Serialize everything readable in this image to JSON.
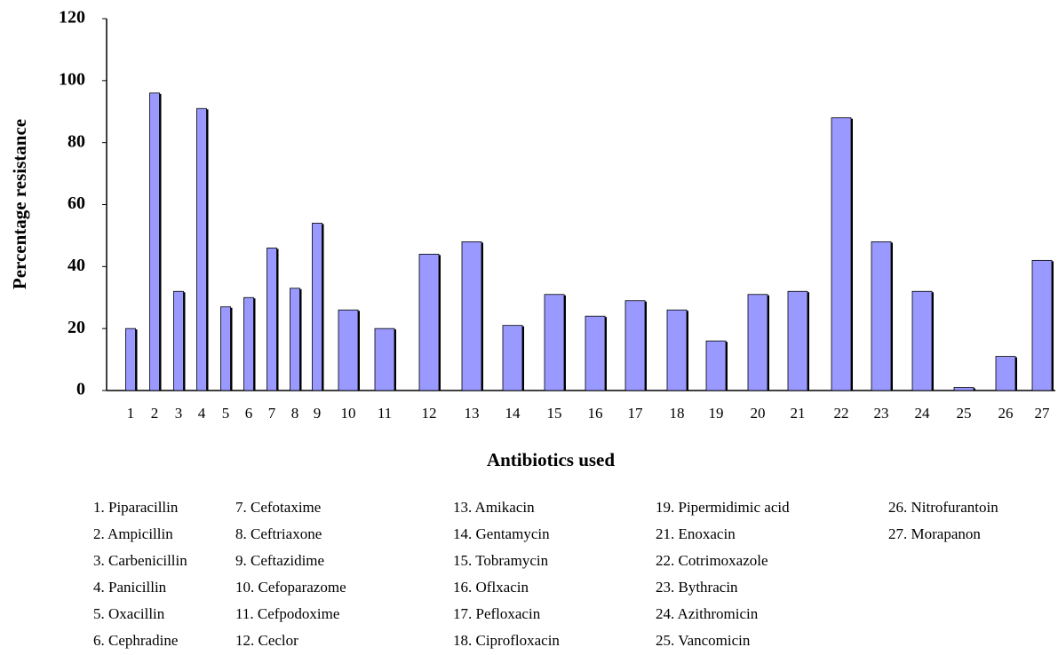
{
  "chart_data": {
    "type": "bar",
    "ylabel": "Percentage resistance",
    "xlabel": "Antibiotics used",
    "categories": [
      "1",
      "2",
      "3",
      "4",
      "5",
      "6",
      "7",
      "8",
      "9",
      "10",
      "11",
      "12",
      "13",
      "14",
      "15",
      "16",
      "17",
      "18",
      "19",
      "20",
      "21",
      "22",
      "23",
      "24",
      "25",
      "26",
      "27"
    ],
    "values": [
      20,
      96,
      32,
      91,
      27,
      30,
      46,
      33,
      54,
      26,
      20,
      44,
      48,
      21,
      31,
      24,
      29,
      26,
      16,
      31,
      32,
      88,
      48,
      32,
      1,
      11,
      42
    ],
    "color": "#9999ff",
    "ylim": [
      0,
      120
    ],
    "yticks": [
      0,
      20,
      40,
      60,
      80,
      100,
      120
    ],
    "grid": false,
    "notes": [
      [
        "1. Piparacillin",
        "2. Ampicillin",
        "3. Carbenicillin",
        "4. Panicillin",
        "5. Oxacillin",
        "6. Cephradine"
      ],
      [
        "7. Cefotaxime",
        "8. Ceftriaxone",
        "9. Ceftazidime",
        "10. Cefoparazome",
        "11. Cefpodoxime",
        "12. Ceclor"
      ],
      [
        "13. Amikacin",
        "14. Gentamycin",
        "15. Tobramycin",
        "16. Oflxacin",
        "17. Pefloxacin",
        "18. Ciprofloxacin"
      ],
      [
        "19. Pipermidimic acid",
        "21. Enoxacin",
        "22. Cotrimoxazole",
        "23. Bythracin",
        "24. Azithromicin",
        "25. Vancomicin"
      ],
      [
        "26. Nitrofurantoin",
        "27. Morapanon"
      ]
    ]
  }
}
